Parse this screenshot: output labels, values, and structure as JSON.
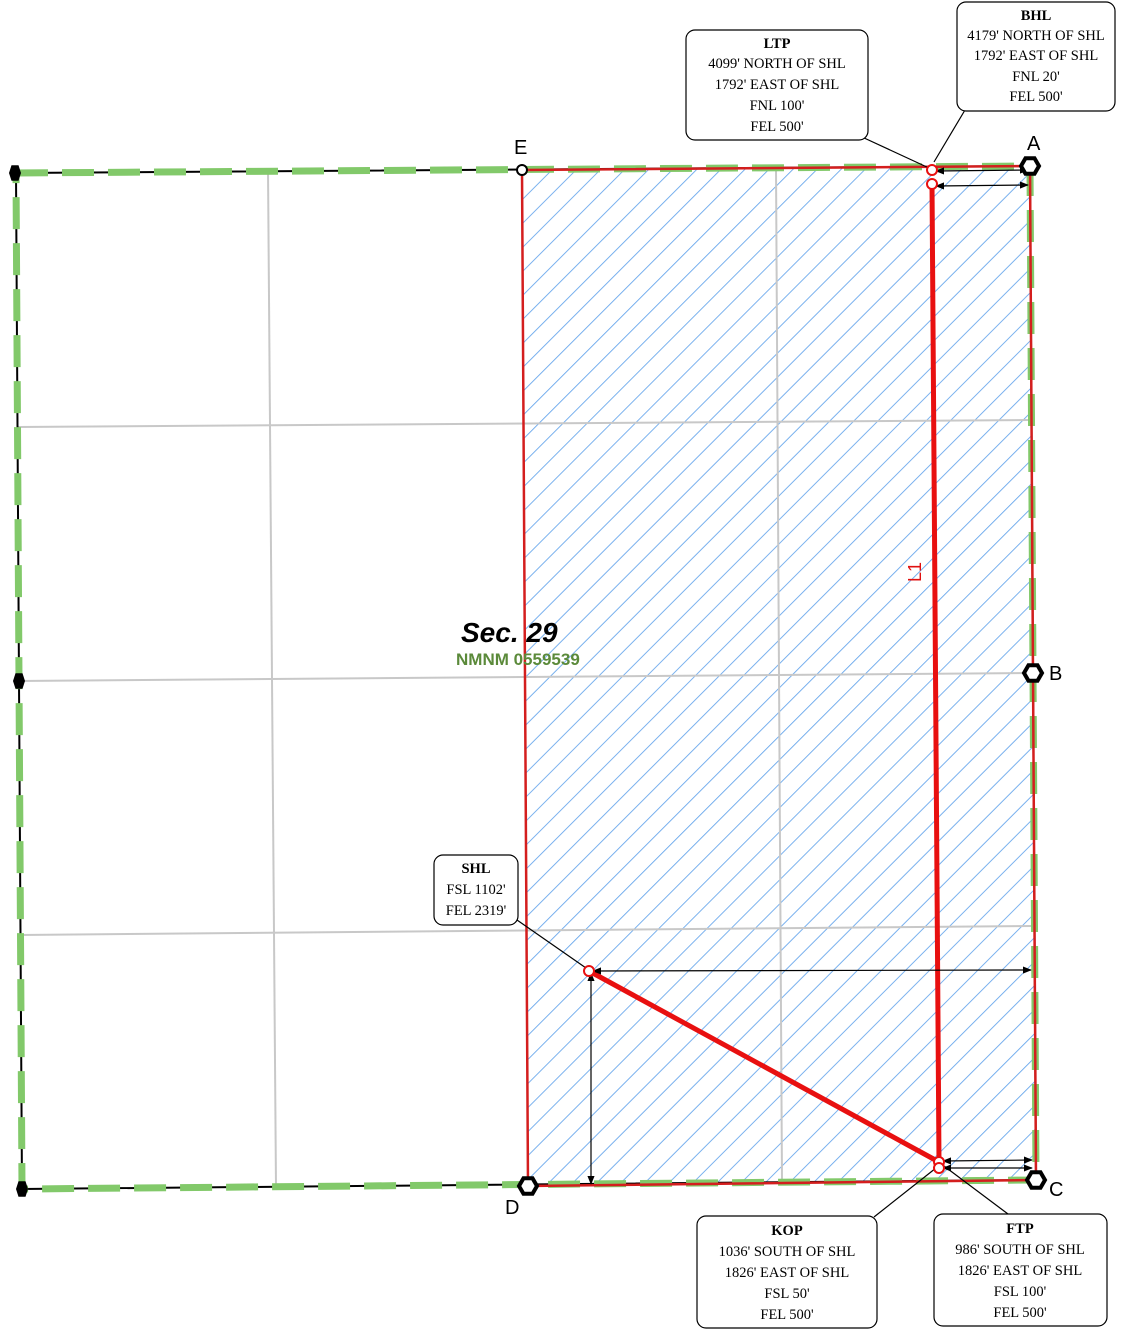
{
  "section": {
    "label": "Sec. 29",
    "lease": "NMNM 0559539"
  },
  "line_label": "L1",
  "corners": {
    "a": "A",
    "b": "B",
    "c": "C",
    "d": "D",
    "e": "E"
  },
  "callouts": {
    "bhl": {
      "title": "BHL",
      "lines": [
        "4179' NORTH OF SHL",
        "1792' EAST OF SHL",
        "FNL 20'",
        "FEL 500'"
      ]
    },
    "ltp": {
      "title": "LTP",
      "lines": [
        "4099' NORTH OF SHL",
        "1792' EAST OF SHL",
        "FNL 100'",
        "FEL 500'"
      ]
    },
    "shl": {
      "title": "SHL",
      "lines": [
        "FSL 1102'",
        "FEL 2319'"
      ]
    },
    "kop": {
      "title": "KOP",
      "lines": [
        "1036' SOUTH OF SHL",
        "1826' EAST OF SHL",
        "FSL 50'",
        "FEL 500'"
      ]
    },
    "ftp": {
      "title": "FTP",
      "lines": [
        "986' SOUTH OF SHL",
        "1826' EAST OF SHL",
        "FSL 100'",
        "FEL 500'"
      ]
    }
  },
  "colors": {
    "boundary": "#000000",
    "lease_dash": "#82c96a",
    "unit_outline": "#d41e1e",
    "hatch": "#6aa8ec",
    "grid": "#c8c8c8",
    "wellbore": "#e81010"
  }
}
